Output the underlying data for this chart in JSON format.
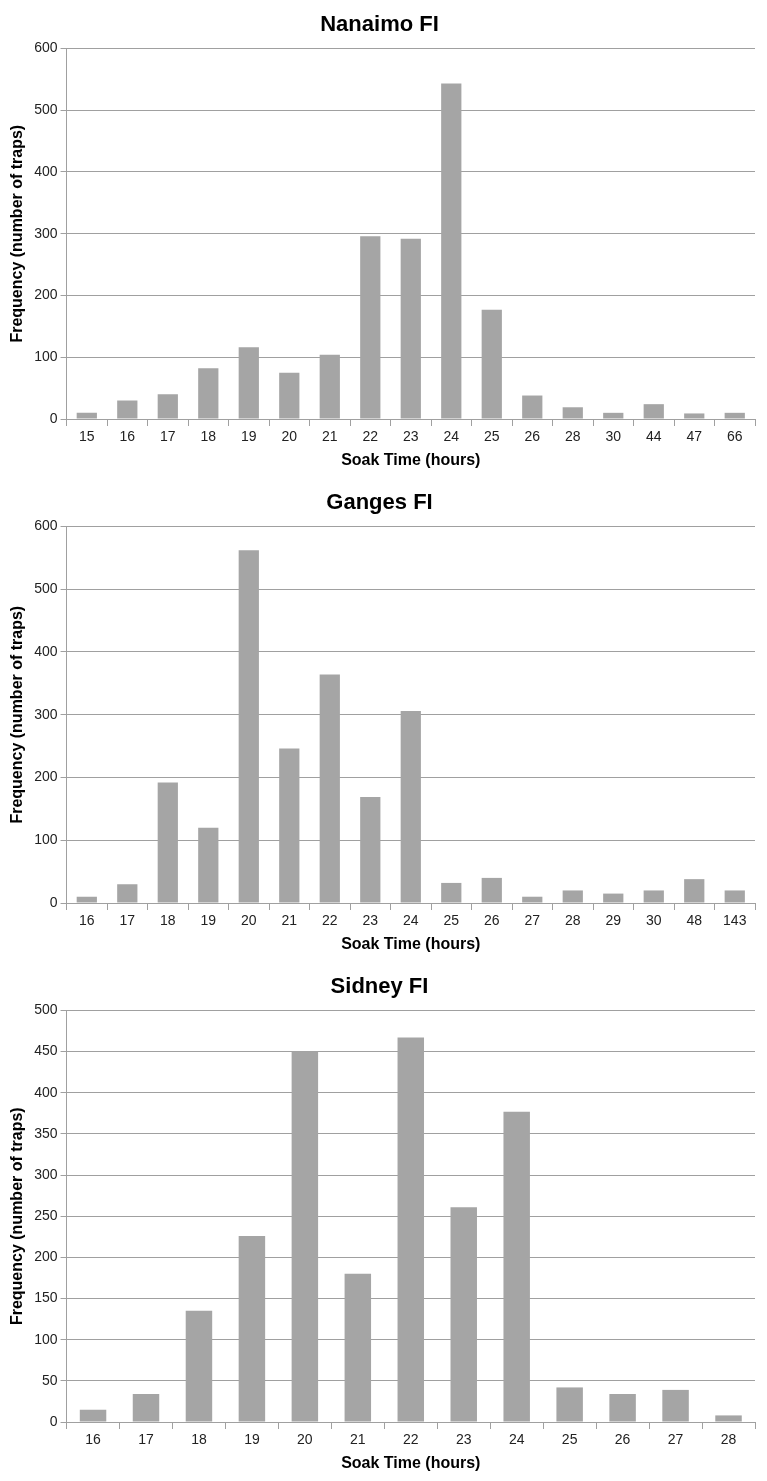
{
  "chart_data": [
    {
      "type": "bar",
      "title": "Nanaimo FI",
      "xlabel": "Soak Time (hours)",
      "ylabel": "Frequency (number of traps)",
      "categories": [
        "15",
        "16",
        "17",
        "18",
        "19",
        "20",
        "21",
        "22",
        "23",
        "24",
        "25",
        "26",
        "28",
        "30",
        "44",
        "47",
        "66"
      ],
      "values": [
        10,
        30,
        40,
        82,
        116,
        75,
        104,
        296,
        292,
        543,
        177,
        38,
        19,
        10,
        24,
        9,
        10
      ],
      "color": "#a5a5a5",
      "ylim": [
        0,
        600
      ],
      "yticks": [
        0,
        100,
        200,
        300,
        400,
        500,
        600
      ],
      "grid": "y",
      "legend": false
    },
    {
      "type": "bar",
      "title": "Ganges FI",
      "xlabel": "Soak Time (hours)",
      "ylabel": "Frequency (number of traps)",
      "categories": [
        "16",
        "17",
        "18",
        "19",
        "20",
        "21",
        "22",
        "23",
        "24",
        "25",
        "26",
        "27",
        "28",
        "29",
        "30",
        "48",
        "143"
      ],
      "values": [
        10,
        30,
        192,
        120,
        562,
        246,
        364,
        169,
        306,
        32,
        40,
        10,
        20,
        15,
        20,
        38,
        20
      ],
      "color": "#a5a5a5",
      "ylim": [
        0,
        600
      ],
      "yticks": [
        0,
        100,
        200,
        300,
        400,
        500,
        600
      ],
      "grid": "y",
      "legend": false
    },
    {
      "type": "bar",
      "title": "Sidney FI",
      "xlabel": "Soak Time (hours)",
      "ylabel": "Frequency (number of traps)",
      "categories": [
        "16",
        "17",
        "18",
        "19",
        "20",
        "21",
        "22",
        "23",
        "24",
        "25",
        "26",
        "27",
        "28"
      ],
      "values": [
        15,
        34,
        135,
        226,
        450,
        180,
        467,
        261,
        377,
        42,
        34,
        39,
        8
      ],
      "color": "#a5a5a5",
      "ylim": [
        0,
        500
      ],
      "yticks": [
        0,
        50,
        100,
        150,
        200,
        250,
        300,
        350,
        400,
        450,
        500
      ],
      "grid": "y",
      "legend": false
    }
  ]
}
